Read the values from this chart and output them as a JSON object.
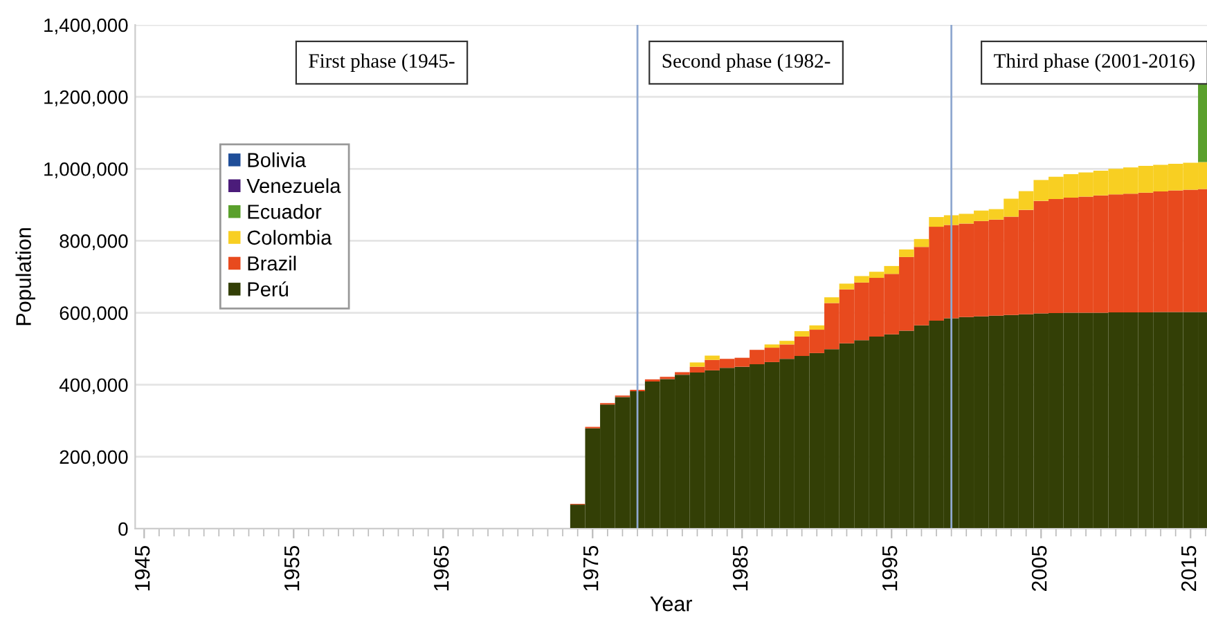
{
  "chart_data": {
    "type": "bar",
    "stacked": true,
    "xlabel": "Year",
    "ylabel": "Population",
    "x": [
      1974,
      1975,
      1976,
      1977,
      1978,
      1979,
      1980,
      1981,
      1982,
      1983,
      1984,
      1985,
      1986,
      1987,
      1988,
      1989,
      1990,
      1991,
      1992,
      1993,
      1994,
      1995,
      1996,
      1997,
      1998,
      1999,
      2000,
      2001,
      2002,
      2003,
      2004,
      2005,
      2006,
      2007,
      2008,
      2009,
      2010,
      2011,
      2012,
      2013,
      2014,
      2015,
      2016
    ],
    "series": [
      {
        "name": "Perú",
        "color": "#333f06",
        "values": [
          67000,
          279000,
          345000,
          366000,
          382000,
          409000,
          416000,
          428000,
          434000,
          440000,
          447000,
          450000,
          457000,
          463000,
          472000,
          480000,
          488000,
          499000,
          515000,
          524000,
          534000,
          540000,
          550000,
          565000,
          578000,
          585000,
          588000,
          590000,
          592000,
          594000,
          596000,
          598000,
          599000,
          600000,
          600000,
          600000,
          601000,
          601000,
          601000,
          602000,
          602000,
          602000,
          602000
        ]
      },
      {
        "name": "Brazil",
        "color": "#e84a1e",
        "values": [
          2000,
          4000,
          4000,
          4000,
          4000,
          6000,
          6000,
          7000,
          16000,
          29000,
          25000,
          25000,
          40000,
          40000,
          40000,
          54000,
          65000,
          128000,
          150000,
          160000,
          163000,
          168000,
          205000,
          218000,
          261000,
          259000,
          260000,
          265000,
          267000,
          273000,
          290000,
          313000,
          317000,
          320000,
          323000,
          326000,
          328000,
          330000,
          333000,
          335000,
          338000,
          340000,
          342000
        ]
      },
      {
        "name": "Colombia",
        "color": "#f8cf22",
        "values": [
          null,
          null,
          null,
          null,
          null,
          null,
          null,
          null,
          12000,
          12000,
          null,
          null,
          null,
          9000,
          10000,
          15000,
          12000,
          16000,
          16000,
          18000,
          17000,
          22000,
          21000,
          22000,
          27000,
          27000,
          27000,
          29000,
          29000,
          50000,
          52000,
          58000,
          62000,
          65000,
          67000,
          69000,
          71000,
          73000,
          74000,
          74000,
          74000,
          75000,
          75000
        ]
      },
      {
        "name": "Ecuador",
        "color": "#5aa02c",
        "values": [
          null,
          null,
          null,
          null,
          null,
          null,
          null,
          null,
          null,
          null,
          null,
          null,
          null,
          null,
          null,
          null,
          null,
          null,
          null,
          null,
          null,
          null,
          null,
          null,
          null,
          null,
          null,
          null,
          null,
          null,
          null,
          null,
          null,
          null,
          null,
          null,
          null,
          null,
          null,
          null,
          null,
          null,
          224000
        ]
      },
      {
        "name": "Venezuela",
        "color": "#4b1c7a",
        "values": [
          null,
          null,
          null,
          null,
          null,
          null,
          null,
          null,
          null,
          null,
          null,
          null,
          null,
          null,
          null,
          null,
          null,
          null,
          null,
          null,
          null,
          null,
          null,
          null,
          null,
          null,
          null,
          null,
          null,
          null,
          null,
          null,
          null,
          null,
          null,
          null,
          null,
          null,
          null,
          null,
          null,
          null,
          null
        ]
      },
      {
        "name": "Bolivia",
        "color": "#1f4e99",
        "values": [
          null,
          null,
          null,
          null,
          null,
          null,
          null,
          null,
          null,
          null,
          null,
          null,
          null,
          null,
          null,
          null,
          null,
          null,
          null,
          null,
          null,
          null,
          null,
          null,
          null,
          null,
          null,
          null,
          null,
          null,
          null,
          null,
          null,
          null,
          null,
          null,
          null,
          null,
          null,
          null,
          null,
          null,
          null
        ]
      }
    ],
    "xlim": [
      1944.4,
      2016.1
    ],
    "xticks": [
      1945,
      1955,
      1965,
      1975,
      1985,
      1995,
      2005,
      2015
    ],
    "ylim": [
      0,
      1400000
    ],
    "yticks": [
      0,
      {
        "value": 200000,
        "label": "200,000"
      },
      {
        "value": 400000,
        "label": "400,000"
      },
      {
        "value": 600000,
        "label": "600,000"
      },
      {
        "value": 800000,
        "label": "800,000"
      },
      {
        "value": 1000000,
        "label": "1,000,000"
      },
      {
        "value": 1200000,
        "label": "1,200,000"
      },
      {
        "value": 1400000,
        "label": "1,400,000"
      }
    ],
    "ref_lines": [
      {
        "axis": "x",
        "value": 1978,
        "label": null,
        "color": "#8fa8d0"
      },
      {
        "axis": "x",
        "value": 1999,
        "label": null,
        "color": "#8fa8d0"
      }
    ],
    "annotations": [
      "First phase (1945-",
      "Second phase (1982-",
      "Third phase (2001-2016)"
    ],
    "grid": "y",
    "legend": "center left"
  }
}
